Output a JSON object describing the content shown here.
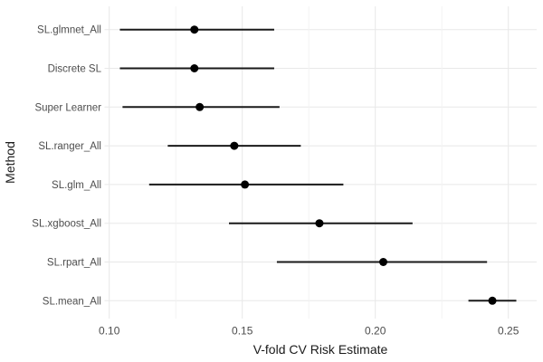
{
  "chart_data": {
    "type": "scatter",
    "subtype": "pointrange-forest-plot",
    "title": "",
    "xlabel": "V-fold CV Risk Estimate",
    "ylabel": "Method",
    "legend": "none",
    "grid": "on",
    "categories": [
      "SL.glmnet_All",
      "Discrete SL",
      "Super Learner",
      "SL.ranger_All",
      "SL.glm_All",
      "SL.xgboost_All",
      "SL.rpart_All",
      "SL.mean_All"
    ],
    "points": [
      {
        "method": "SL.glmnet_All",
        "estimate": 0.132,
        "ci_lower": 0.104,
        "ci_upper": 0.162
      },
      {
        "method": "Discrete SL",
        "estimate": 0.132,
        "ci_lower": 0.104,
        "ci_upper": 0.162
      },
      {
        "method": "Super Learner",
        "estimate": 0.134,
        "ci_lower": 0.105,
        "ci_upper": 0.164
      },
      {
        "method": "SL.ranger_All",
        "estimate": 0.147,
        "ci_lower": 0.122,
        "ci_upper": 0.172
      },
      {
        "method": "SL.glm_All",
        "estimate": 0.151,
        "ci_lower": 0.115,
        "ci_upper": 0.188
      },
      {
        "method": "SL.xgboost_All",
        "estimate": 0.179,
        "ci_lower": 0.145,
        "ci_upper": 0.214
      },
      {
        "method": "SL.rpart_All",
        "estimate": 0.203,
        "ci_lower": 0.163,
        "ci_upper": 0.242
      },
      {
        "method": "SL.mean_All",
        "estimate": 0.244,
        "ci_lower": 0.235,
        "ci_upper": 0.253
      }
    ],
    "x_ticks": [
      {
        "value": 0.1,
        "label": "0.10"
      },
      {
        "value": 0.15,
        "label": "0.15"
      },
      {
        "value": 0.2,
        "label": "0.20"
      },
      {
        "value": 0.25,
        "label": "0.25"
      }
    ],
    "x_minor_gridlines": [
      0.125,
      0.175,
      0.225
    ],
    "xlim": [
      0.098,
      0.261
    ],
    "colors": {
      "point": "#000000",
      "interval_line": "#1a1a1a",
      "grid_major": "#e8e8e8",
      "grid_minor": "#f3f3f3",
      "tick_label": "#4d4d4d",
      "axis_title": "#1a1a1a",
      "background": "#ffffff"
    }
  }
}
